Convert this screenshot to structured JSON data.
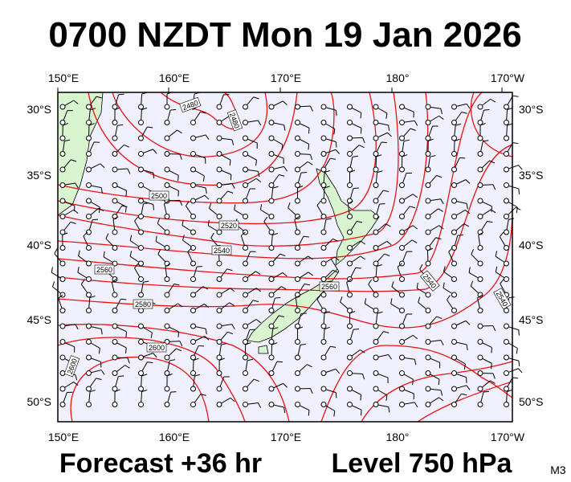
{
  "header": {
    "title": "0700 NZDT Mon 19 Jan 2026"
  },
  "map": {
    "lon_labels": [
      "150°E",
      "160°E",
      "170°E",
      "180°",
      "170°W"
    ],
    "lat_labels": [
      "30°S",
      "35°S",
      "40°S",
      "45°S",
      "50°S"
    ],
    "contour_labels": [
      "2480",
      "2480",
      "2500",
      "2520",
      "2540",
      "2560",
      "2560",
      "2580",
      "2600",
      "2600",
      "2540",
      "2540"
    ]
  },
  "footer": {
    "forecast": "Forecast +36 hr",
    "level": "Level 750 hPa",
    "code": "M3"
  }
}
